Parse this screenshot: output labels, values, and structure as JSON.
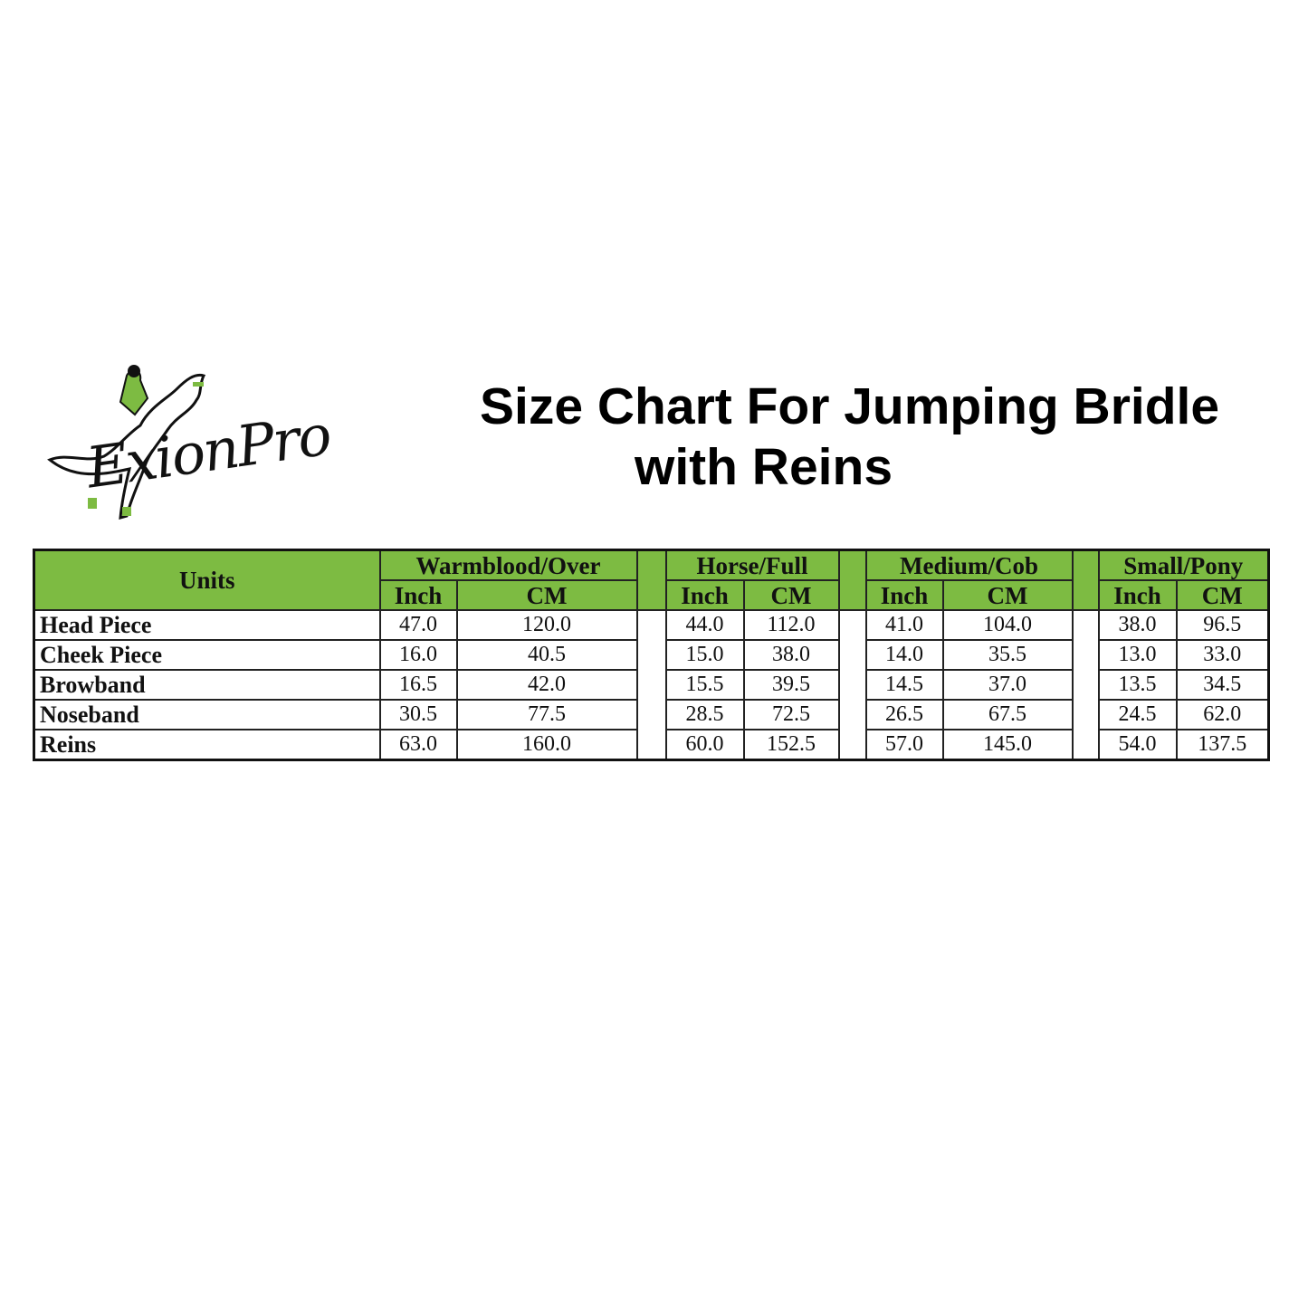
{
  "logo": {
    "brand": "ExionPro",
    "icon": "jumping-horse-rider-icon",
    "accent": "#7dbb42"
  },
  "title": {
    "line1": "Size Chart For Jumping Bridle",
    "line2": "with Reins"
  },
  "table": {
    "header_color": "#7dbb42",
    "units_label": "Units",
    "groups": [
      {
        "name": "Warmblood/Over",
        "inch": "Inch",
        "cm": "CM"
      },
      {
        "name": "Horse/Full",
        "inch": "Inch",
        "cm": "CM"
      },
      {
        "name": "Medium/Cob",
        "inch": "Inch",
        "cm": "CM"
      },
      {
        "name": "Small/Pony",
        "inch": "Inch",
        "cm": "CM"
      }
    ],
    "rows": [
      {
        "label": "Head Piece",
        "values": [
          "47.0",
          "120.0",
          "44.0",
          "112.0",
          "41.0",
          "104.0",
          "38.0",
          "96.5"
        ]
      },
      {
        "label": "Cheek Piece",
        "values": [
          "16.0",
          "40.5",
          "15.0",
          "38.0",
          "14.0",
          "35.5",
          "13.0",
          "33.0"
        ]
      },
      {
        "label": "Browband",
        "values": [
          "16.5",
          "42.0",
          "15.5",
          "39.5",
          "14.5",
          "37.0",
          "13.5",
          "34.5"
        ]
      },
      {
        "label": "Noseband",
        "values": [
          "30.5",
          "77.5",
          "28.5",
          "72.5",
          "26.5",
          "67.5",
          "24.5",
          "62.0"
        ]
      },
      {
        "label": "Reins",
        "values": [
          "63.0",
          "160.0",
          "60.0",
          "152.5",
          "57.0",
          "145.0",
          "54.0",
          "137.5"
        ]
      }
    ]
  }
}
